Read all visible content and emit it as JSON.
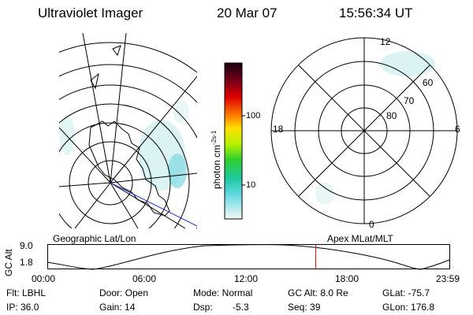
{
  "header": {
    "instrument": "Ultraviolet Imager",
    "date": "20 Mar 07",
    "time": "15:56:34 UT"
  },
  "colorbar": {
    "unit": "photon cm",
    "unit_exponents": "-2s-1",
    "tick_labels": [
      "100",
      "10"
    ]
  },
  "geographic_panel": {
    "label": "Geographic Lat/Lon"
  },
  "polar_panel": {
    "label": "Apex MLat/MLT",
    "mlt_labels": {
      "top": "12",
      "bottom": "0",
      "left": "18",
      "right": "6"
    },
    "mlat_labels": [
      "60",
      "70",
      "80"
    ]
  },
  "altitude_plot": {
    "ylabel": "GC Alt",
    "y_ticks": [
      "9.0",
      "1.8"
    ],
    "x_ticks": [
      "00:00",
      "06:00",
      "12:00",
      "18:00",
      "23:59"
    ],
    "current_time_marker_fraction": 0.6665
  },
  "info": {
    "filter": "Flt: LBHL",
    "door": "Door: Open",
    "mode": "Mode: Normal",
    "gc_alt": "GC Alt: 8.0 Re",
    "glat": "GLat: -75.7",
    "ip": "IP: 36.0",
    "gain": "Gain: 14",
    "dsp_label": "Dsp:",
    "dsp_value": "-5.3",
    "seq": "Seq: 39",
    "glon": "GLon: 176.8"
  }
}
